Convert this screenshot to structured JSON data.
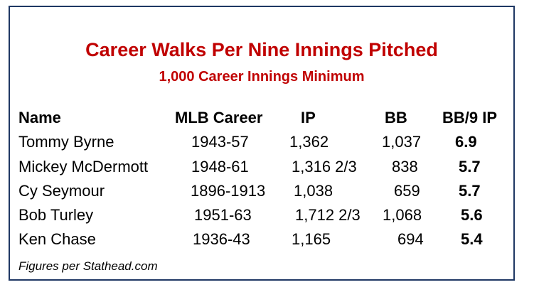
{
  "title": "Career Walks Per Nine Innings Pitched",
  "subtitle": "1,000 Career Innings Minimum",
  "columns": [
    "Name",
    "MLB Career",
    "IP",
    "BB",
    "BB/9 IP"
  ],
  "rows": [
    {
      "name": "Tommy Byrne",
      "career": "1943-57",
      "ip": "1,362",
      "bb": "1,037",
      "bb9": "6.9"
    },
    {
      "name": "Mickey McDermott",
      "career": "1948-61",
      "ip": "1,316 2/3",
      "bb": "838",
      "bb9": "5.7"
    },
    {
      "name": "Cy Seymour",
      "career": "1896-1913",
      "ip": "1,038",
      "bb": "659",
      "bb9": "5.7"
    },
    {
      "name": "Bob Turley",
      "career": "1951-63",
      "ip": "1,712 2/3",
      "bb": "1,068",
      "bb9": "5.6"
    },
    {
      "name": "Ken Chase",
      "career": "1936-43",
      "ip": "1,165",
      "bb": "694",
      "bb9": "5.4"
    }
  ],
  "footnote": "Figures per Stathead.com",
  "colors": {
    "title": "#c00000",
    "border": "#1f3864"
  }
}
